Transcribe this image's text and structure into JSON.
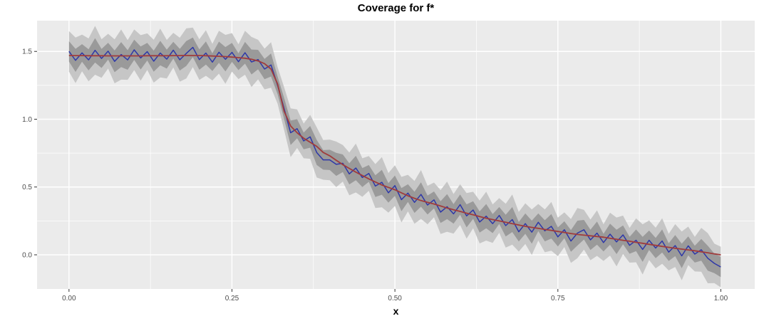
{
  "figure": {
    "title": "Coverage for f*",
    "x_axis_label": "x"
  },
  "chart_data": {
    "type": "line",
    "title": "Coverage for f*",
    "xlabel": "x",
    "ylabel": "",
    "grid": true,
    "legend": "none",
    "xlim": [
      -0.049,
      1.052
    ],
    "ylim": [
      -0.252,
      1.727
    ],
    "x_ticks": {
      "values": [
        0,
        0.25,
        0.5,
        0.75,
        1.0
      ],
      "labels": [
        "0.00",
        "0.25",
        "0.50",
        "0.75",
        "1.00"
      ]
    },
    "y_ticks": {
      "values": [
        0,
        0.5,
        1.0,
        1.5
      ],
      "labels": [
        "0.0",
        "0.5",
        "1.0",
        "1.5"
      ]
    },
    "x_minor": [
      0.125,
      0.375,
      0.625,
      0.875
    ],
    "y_minor": [
      0.25,
      0.75,
      1.25
    ],
    "x_start": 0,
    "x_step": 0.01,
    "panel_background": "#EBEBEB",
    "gridline_color": "#FFFFFF",
    "tick_color": "#333333",
    "tick_label_color": "#4D4D4D",
    "series": [
      {
        "name": "true function f*",
        "role": "smooth-true-curve",
        "color": "#A03C3C",
        "width": 1.8,
        "values": [
          1.47,
          1.469,
          1.469,
          1.468,
          1.468,
          1.468,
          1.467,
          1.467,
          1.467,
          1.467,
          1.467,
          1.467,
          1.468,
          1.468,
          1.468,
          1.468,
          1.469,
          1.469,
          1.47,
          1.47,
          1.47,
          1.468,
          1.466,
          1.464,
          1.462,
          1.458,
          1.454,
          1.45,
          1.442,
          1.43,
          1.41,
          1.37,
          1.26,
          1.06,
          0.95,
          0.9,
          0.86,
          0.83,
          0.8,
          0.755,
          0.73,
          0.697,
          0.665,
          0.637,
          0.61,
          0.585,
          0.56,
          0.537,
          0.515,
          0.497,
          0.48,
          0.457,
          0.435,
          0.417,
          0.4,
          0.387,
          0.375,
          0.36,
          0.345,
          0.332,
          0.32,
          0.307,
          0.295,
          0.282,
          0.27,
          0.26,
          0.25,
          0.24,
          0.23,
          0.22,
          0.21,
          0.202,
          0.195,
          0.187,
          0.18,
          0.172,
          0.165,
          0.157,
          0.15,
          0.145,
          0.14,
          0.135,
          0.13,
          0.122,
          0.115,
          0.107,
          0.1,
          0.092,
          0.085,
          0.077,
          0.07,
          0.062,
          0.055,
          0.048,
          0.042,
          0.036,
          0.03,
          0.022,
          0.015,
          0.007,
          0.0
        ]
      },
      {
        "name": "posterior mean estimate",
        "role": "noisy-estimate-curve",
        "color": "#2E38A8",
        "width": 1.5,
        "values": [
          1.5,
          1.434,
          1.489,
          1.438,
          1.508,
          1.448,
          1.502,
          1.427,
          1.477,
          1.437,
          1.512,
          1.452,
          1.498,
          1.428,
          1.488,
          1.443,
          1.509,
          1.439,
          1.485,
          1.53,
          1.44,
          1.488,
          1.421,
          1.494,
          1.442,
          1.493,
          1.424,
          1.49,
          1.422,
          1.44,
          1.37,
          1.4,
          1.25,
          1.08,
          0.9,
          0.93,
          0.84,
          0.87,
          0.755,
          0.7,
          0.7,
          0.667,
          0.675,
          0.597,
          0.64,
          0.57,
          0.6,
          0.507,
          0.535,
          0.457,
          0.51,
          0.407,
          0.455,
          0.387,
          0.445,
          0.367,
          0.405,
          0.315,
          0.355,
          0.302,
          0.37,
          0.287,
          0.33,
          0.242,
          0.285,
          0.23,
          0.29,
          0.215,
          0.26,
          0.17,
          0.23,
          0.167,
          0.24,
          0.177,
          0.21,
          0.132,
          0.185,
          0.102,
          0.16,
          0.185,
          0.11,
          0.16,
          0.09,
          0.152,
          0.095,
          0.147,
          0.07,
          0.107,
          0.04,
          0.107,
          0.05,
          0.102,
          0.02,
          0.068,
          -0.008,
          0.066,
          0.005,
          0.037,
          -0.025,
          -0.063,
          -0.09
        ]
      }
    ],
    "bands": {
      "center": "posterior mean estimate",
      "inner": {
        "color": "#9A9A9A",
        "half_width_pattern": [
          0.075,
          0.085,
          0.065,
          0.078,
          0.09,
          0.07,
          0.062,
          0.08,
          0.092,
          0.072
        ]
      },
      "outer": {
        "color": "#C6C6C6",
        "half_width_pattern": [
          0.15,
          0.168,
          0.135,
          0.158,
          0.18,
          0.142,
          0.128,
          0.162,
          0.185,
          0.146
        ]
      }
    }
  }
}
